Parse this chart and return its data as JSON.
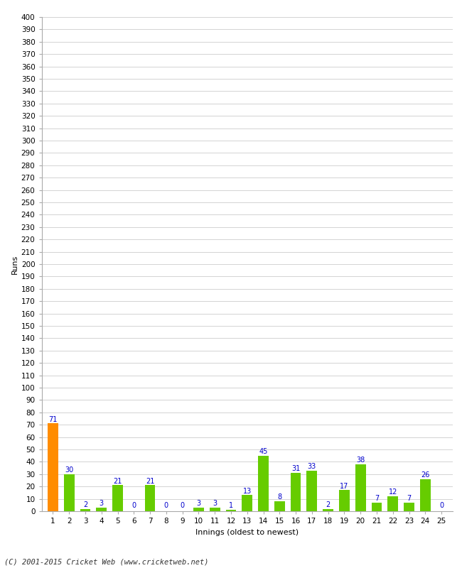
{
  "xlabel": "Innings (oldest to newest)",
  "ylabel": "Runs",
  "categories": [
    1,
    2,
    3,
    4,
    5,
    6,
    7,
    8,
    9,
    10,
    11,
    12,
    13,
    14,
    15,
    16,
    17,
    18,
    19,
    20,
    21,
    22,
    23,
    24,
    25
  ],
  "values": [
    71,
    30,
    2,
    3,
    21,
    0,
    21,
    0,
    0,
    3,
    3,
    1,
    13,
    45,
    8,
    31,
    33,
    2,
    17,
    38,
    7,
    12,
    7,
    26,
    0
  ],
  "bar_colors": [
    "#ff8c00",
    "#66cc00",
    "#66cc00",
    "#66cc00",
    "#66cc00",
    "#66cc00",
    "#66cc00",
    "#66cc00",
    "#66cc00",
    "#66cc00",
    "#66cc00",
    "#66cc00",
    "#66cc00",
    "#66cc00",
    "#66cc00",
    "#66cc00",
    "#66cc00",
    "#66cc00",
    "#66cc00",
    "#66cc00",
    "#66cc00",
    "#66cc00",
    "#66cc00",
    "#66cc00",
    "#66cc00"
  ],
  "ylim": [
    0,
    400
  ],
  "yticks": [
    0,
    10,
    20,
    30,
    40,
    50,
    60,
    70,
    80,
    90,
    100,
    110,
    120,
    130,
    140,
    150,
    160,
    170,
    180,
    190,
    200,
    210,
    220,
    230,
    240,
    250,
    260,
    270,
    280,
    290,
    300,
    310,
    320,
    330,
    340,
    350,
    360,
    370,
    380,
    390,
    400
  ],
  "label_color": "#0000cc",
  "label_fontsize": 7,
  "axis_fontsize": 7.5,
  "footer": "(C) 2001-2015 Cricket Web (www.cricketweb.net)",
  "background_color": "#ffffff",
  "grid_color": "#cccccc",
  "bar_width": 0.65
}
